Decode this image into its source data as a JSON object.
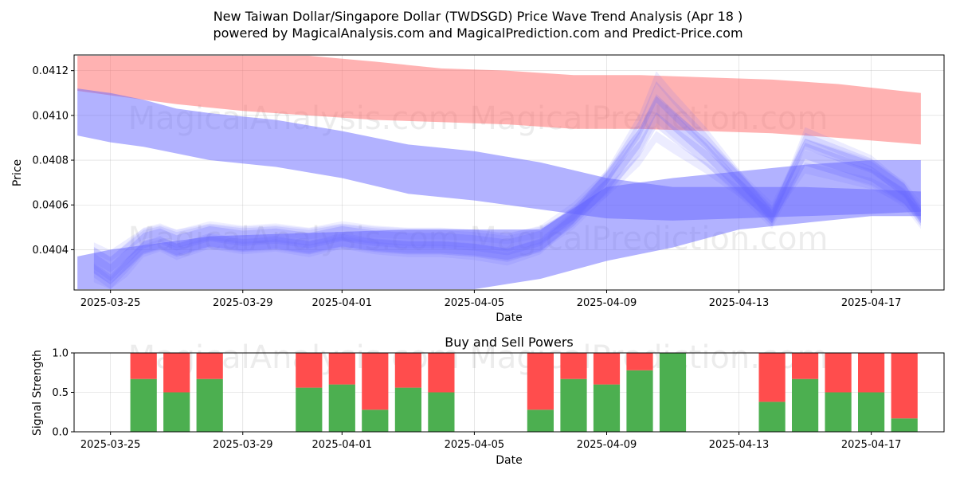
{
  "chart_data": [
    {
      "type": "area",
      "title_line1": "New Taiwan Dollar/Singapore Dollar (TWDSGD) Price Wave Trend Analysis (Apr 18 )",
      "title_line2": "powered by MagicalAnalysis.com and MagicalPrediction.com and Predict-Price.com",
      "xlabel": "Date",
      "ylabel": "Price",
      "x_ticks": [
        "2025-03-25",
        "2025-03-29",
        "2025-04-01",
        "2025-04-05",
        "2025-04-09",
        "2025-04-13",
        "2025-04-17"
      ],
      "y_ticks": [
        "0.0404",
        "0.0406",
        "0.0408",
        "0.0410",
        "0.0412"
      ],
      "ylim": [
        0.04022,
        0.04127
      ],
      "xlim_days": [
        -1.1,
        25.2
      ],
      "watermark": "MagicalAnalysis.com   MagicalPrediction.com",
      "band_colors": {
        "red": "#ff6666",
        "blue": "#6666ff"
      },
      "red_band": {
        "x": [
          -1,
          0,
          2,
          4,
          6,
          8,
          10,
          12,
          14,
          16,
          18,
          20,
          22,
          24.5
        ],
        "upper": [
          0.0413,
          0.04131,
          0.0413,
          0.04129,
          0.04127,
          0.04124,
          0.04121,
          0.0412,
          0.04118,
          0.04118,
          0.04117,
          0.04116,
          0.04114,
          0.0411
        ],
        "lower": [
          0.04111,
          0.04109,
          0.04105,
          0.04102,
          0.041,
          0.04098,
          0.04097,
          0.04096,
          0.04094,
          0.04094,
          0.04093,
          0.04092,
          0.0409,
          0.04087
        ]
      },
      "blue_upper_band": {
        "x": [
          -1,
          0,
          1,
          2,
          3,
          5,
          7,
          9,
          11,
          13,
          15,
          17,
          19,
          21,
          23,
          24.5
        ],
        "upper": [
          0.04112,
          0.0411,
          0.04107,
          0.04103,
          0.04101,
          0.04098,
          0.04093,
          0.04087,
          0.04084,
          0.04079,
          0.04072,
          0.04068,
          0.04068,
          0.04068,
          0.04067,
          0.04066
        ],
        "lower": [
          0.04091,
          0.04088,
          0.04086,
          0.04083,
          0.0408,
          0.04077,
          0.04072,
          0.04065,
          0.04062,
          0.04058,
          0.04054,
          0.04053,
          0.04054,
          0.04055,
          0.04056,
          0.04057
        ]
      },
      "blue_lower_band": {
        "x": [
          -1,
          0,
          1,
          2,
          3,
          5,
          7,
          9,
          11,
          13,
          15,
          17,
          19,
          21,
          23,
          24.5
        ],
        "upper": [
          0.04037,
          0.0404,
          0.04042,
          0.04044,
          0.04046,
          0.04047,
          0.04048,
          0.04049,
          0.04049,
          0.04049,
          0.04068,
          0.04072,
          0.04075,
          0.04078,
          0.0408,
          0.0408
        ],
        "lower": [
          0.04022,
          0.04022,
          0.04022,
          0.04022,
          0.04022,
          0.04022,
          0.04022,
          0.04022,
          0.04022,
          0.04027,
          0.04035,
          0.04041,
          0.04049,
          0.04052,
          0.04055,
          0.04055
        ]
      },
      "wave_center": {
        "x": [
          -0.5,
          0,
          0.5,
          1,
          1.5,
          2,
          3,
          4,
          5,
          6,
          7,
          8,
          9,
          10,
          11,
          12,
          13,
          14,
          15,
          16,
          16.5,
          17,
          18,
          19,
          20,
          21,
          22,
          23,
          24,
          24.5
        ],
        "y": [
          0.04034,
          0.04029,
          0.04036,
          0.04043,
          0.04045,
          0.04042,
          0.04046,
          0.04044,
          0.04045,
          0.04043,
          0.04046,
          0.04044,
          0.04043,
          0.04043,
          0.04042,
          0.0404,
          0.04044,
          0.04055,
          0.0407,
          0.0409,
          0.04105,
          0.04098,
          0.04085,
          0.0407,
          0.04055,
          0.04085,
          0.0408,
          0.04075,
          0.04065,
          0.04055
        ]
      }
    },
    {
      "type": "bar",
      "title": "Buy and Sell Powers",
      "xlabel": "Date",
      "ylabel": "Signal Strength",
      "x_ticks": [
        "2025-03-25",
        "2025-03-29",
        "2025-04-01",
        "2025-04-05",
        "2025-04-09",
        "2025-04-13",
        "2025-04-17"
      ],
      "y_ticks": [
        "0.0",
        "0.5",
        "1.0"
      ],
      "ylim": [
        0,
        1
      ],
      "xlim_days": [
        -1.1,
        25.2
      ],
      "colors": {
        "buy": "#4caf50",
        "sell": "#ff4d4d"
      },
      "day_offsets": [
        1,
        2,
        3,
        6,
        7,
        8,
        9,
        10,
        13,
        14,
        15,
        16,
        17,
        20,
        21,
        22,
        23,
        24
      ],
      "buy": [
        0.67,
        0.5,
        0.67,
        0.56,
        0.6,
        0.28,
        0.56,
        0.5,
        0.28,
        0.67,
        0.6,
        0.78,
        1.0,
        0.38,
        0.67,
        0.5,
        0.5,
        0.17
      ]
    }
  ]
}
